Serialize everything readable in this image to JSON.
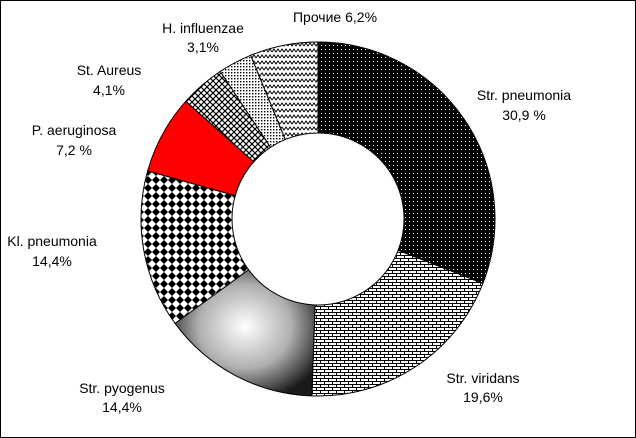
{
  "chart_data": {
    "type": "pie",
    "variant": "doughnut",
    "title": "",
    "legend": "none",
    "start_angle_deg": 0,
    "direction": "clockwise",
    "series": [
      {
        "name": "",
        "labels": [
          {
            "category": "Str. pneumonia",
            "value_label": "30,9 %"
          },
          {
            "category": "Str. viridans",
            "value_label": "19,6%"
          },
          {
            "category": "Str. pyogenus",
            "value_label": "14,4%"
          },
          {
            "category": "Kl. pneumonia",
            "value_label": "14,4%"
          },
          {
            "category": "P. aeruginosa",
            "value_label": "7,2 %"
          },
          {
            "category": "St. Aureus",
            "value_label": "4,1%"
          },
          {
            "category": "H. influenzae",
            "value_label": "3,1%"
          },
          {
            "category": "Прочие 6,2%",
            "value_label": ""
          }
        ]
      }
    ],
    "categories": [
      "Str. pneumonia",
      "Str. viridans",
      "Str. pyogenus",
      "Kl. pneumonia",
      "P. aeruginosa",
      "St. Aureus",
      "H. influenzae",
      "Прочие"
    ],
    "values": [
      30.9,
      19.6,
      14.4,
      14.4,
      7.2,
      4.1,
      3.1,
      6.2
    ],
    "fills": [
      "pattern-dots-black",
      "pattern-brick",
      "gradient-gray",
      "pattern-checker",
      "#ff0000",
      "pattern-diamond",
      "pattern-dense-dots",
      "pattern-zigzag"
    ],
    "accent_color": "#ff0000"
  }
}
